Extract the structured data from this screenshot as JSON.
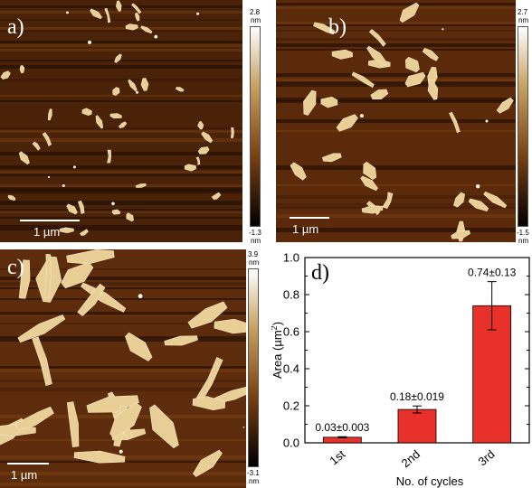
{
  "panels": {
    "a": {
      "label": "a)",
      "scale_bar": "1 µm",
      "colorbar_max": "2.8",
      "colorbar_min": "-1.3",
      "unit": "nm"
    },
    "b": {
      "label": "b)",
      "scale_bar": "1 µm",
      "colorbar_max": "2.7",
      "colorbar_min": "-1.5",
      "unit": "nm"
    },
    "c": {
      "label": "c)",
      "scale_bar": "1 µm",
      "colorbar_max": "3.9",
      "colorbar_min": "-3.1",
      "unit": "nm"
    },
    "d": {
      "label": "d)"
    }
  },
  "colors": {
    "afm_dark": "#3a1a06",
    "afm_mid": "#6e3a10",
    "afm_flake": "#e9cf96",
    "bar_fill": "#e8312a",
    "axis": "#000000"
  },
  "chart_data": {
    "type": "bar",
    "categories": [
      "1st",
      "2nd",
      "3rd"
    ],
    "values": [
      0.03,
      0.18,
      0.74
    ],
    "errors": [
      0.003,
      0.019,
      0.13
    ],
    "data_labels": [
      "0.03±0.003",
      "0.18±0.019",
      "0.74±0.13"
    ],
    "xlabel": "No. of cycles",
    "ylabel_main": "Area (µm",
    "ylabel_sup": "2",
    "ylabel_end": ")",
    "ylim": [
      0.0,
      1.0
    ],
    "yticks": [
      "0.0",
      "0.2",
      "0.4",
      "0.6",
      "0.8",
      "1.0"
    ],
    "grid": false
  }
}
